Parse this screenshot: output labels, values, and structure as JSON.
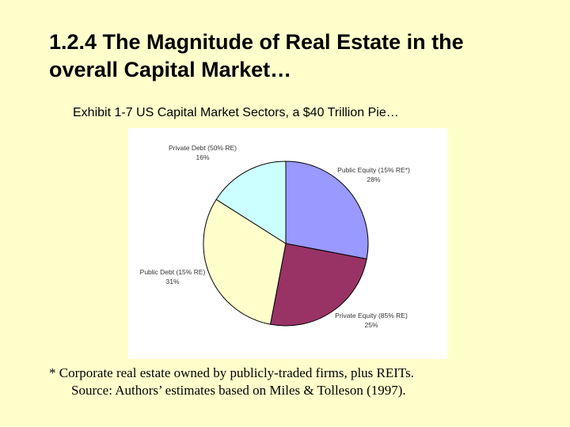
{
  "slide": {
    "title_line1": "1.2.4 The Magnitude of Real Estate in the",
    "title_line2": "overall Capital Market…",
    "exhibit_caption": "Exhibit 1-7 US Capital Market Sectors, a $40 Trillion Pie…",
    "footnote": "* Corporate real estate owned by publicly-traded firms, plus REITs.",
    "source": "Source: Authors’ estimates based on Miles & Tolleson (1997)."
  },
  "chart_data": {
    "type": "pie",
    "title": "",
    "start_angle_deg": 0,
    "direction": "clockwise",
    "slices": [
      {
        "name": "Public Equity (15% RE*)",
        "value": 28,
        "value_label": "28%",
        "color": "#9999ff"
      },
      {
        "name": "Private Equity (85% RE)",
        "value": 25,
        "value_label": "25%",
        "color": "#993366"
      },
      {
        "name": "Public Debt (15% RE)",
        "value": 31,
        "value_label": "31%",
        "color": "#ffffcc"
      },
      {
        "name": "Private Debt (50% RE)",
        "value": 16,
        "value_label": "16%",
        "color": "#ccffff"
      }
    ]
  }
}
